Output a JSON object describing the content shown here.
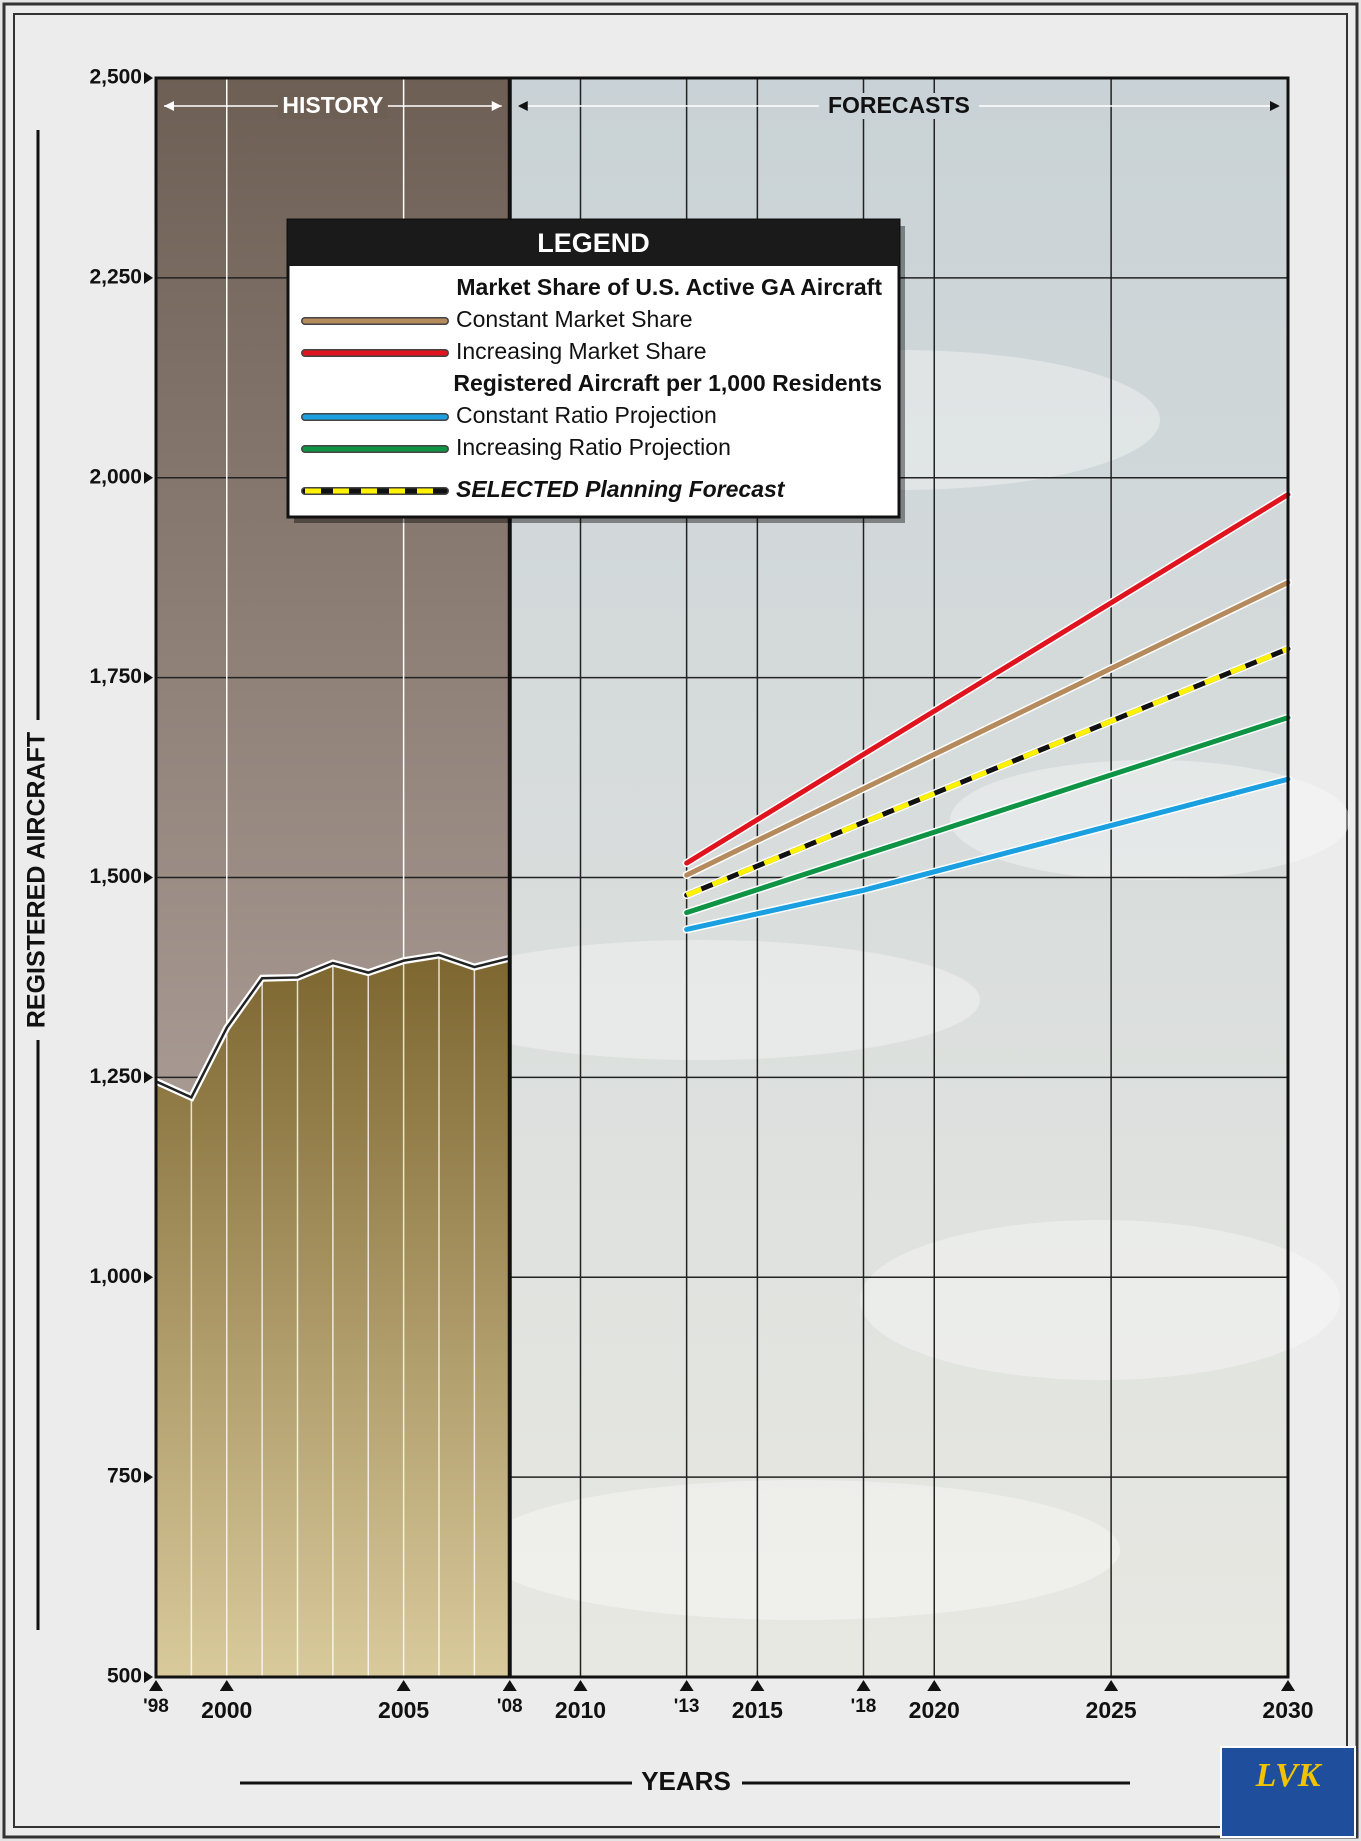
{
  "chart_data": {
    "type": "line",
    "y_label": "REGISTERED AIRCRAFT",
    "x_label": "YEARS",
    "logo": "LVK",
    "xlim": [
      1998,
      2030
    ],
    "ylim": [
      500,
      2500
    ],
    "grid": true,
    "xticks": [
      {
        "value": 1998,
        "label": "'98"
      },
      2000,
      2005,
      {
        "value": 2008,
        "label": "'08"
      },
      2010,
      {
        "value": 2013,
        "label": "'13"
      },
      2015,
      {
        "value": 2018,
        "label": "'18"
      },
      2020,
      2025,
      2030
    ],
    "yticks": [
      500,
      750,
      {
        "value": 1000,
        "label": "1,000"
      },
      {
        "value": 1250,
        "label": "1,250"
      },
      {
        "value": 1500,
        "label": "1,500"
      },
      {
        "value": 1750,
        "label": "1,750"
      },
      {
        "value": 2000,
        "label": "2,000"
      },
      {
        "value": 2250,
        "label": "2,250"
      },
      {
        "value": 2500,
        "label": "2,500"
      }
    ],
    "periods": [
      {
        "label": "HISTORY",
        "from": 1998,
        "to": 2008
      },
      {
        "label": "FORECASTS",
        "from": 2008,
        "to": 2030
      }
    ],
    "area": {
      "color": "#8a7440",
      "x": [
        1998,
        1999,
        2000,
        2001,
        2002,
        2003,
        2004,
        2005,
        2006,
        2007,
        2008
      ],
      "values": [
        1245,
        1225,
        1312,
        1374,
        1375,
        1393,
        1381,
        1396,
        1403,
        1388,
        1399
      ]
    },
    "legend_title": "LEGEND",
    "legend_groups": [
      "Market Share of U.S. Active GA Aircraft",
      "Registered Aircraft per 1,000 Residents"
    ],
    "series": [
      {
        "name": "Constant Market Share",
        "color": "#b58a5c",
        "x": [
          2013,
          2018,
          2030
        ],
        "values": [
          1503,
          1611,
          1869
        ]
      },
      {
        "name": "Increasing Market Share",
        "color": "#e0141e",
        "x": [
          2013,
          2018,
          2030
        ],
        "values": [
          1518,
          1654,
          1979
        ]
      },
      {
        "name": "Constant Ratio Projection",
        "color": "#1aa0e0",
        "x": [
          2013,
          2018,
          2030
        ],
        "values": [
          1435,
          1484,
          1623
        ]
      },
      {
        "name": "Increasing Ratio Projection",
        "color": "#0e9444",
        "x": [
          2013,
          2018,
          2030
        ],
        "values": [
          1456,
          1528,
          1700
        ]
      },
      {
        "name": "SELECTED Planning Forecast",
        "color": "#fff200",
        "dash_color": "#111111",
        "x": [
          2013,
          2018,
          2030
        ],
        "values": [
          1478,
          1569,
          1786
        ]
      }
    ]
  }
}
